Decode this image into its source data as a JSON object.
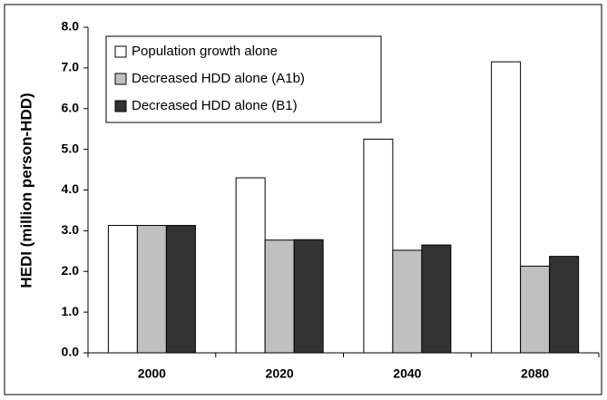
{
  "chart_data": {
    "type": "bar",
    "y_label": "HEDI (million person-HDD)",
    "categories": [
      "2000",
      "2020",
      "2040",
      "2080"
    ],
    "series": [
      {
        "name": "Population growth alone",
        "color": "#ffffff",
        "values": [
          3.13,
          4.3,
          5.25,
          7.15
        ]
      },
      {
        "name": "Decreased HDD alone (A1b)",
        "color": "#c0c0c0",
        "values": [
          3.13,
          2.77,
          2.52,
          2.13
        ]
      },
      {
        "name": "Decreased HDD alone (B1)",
        "color": "#333333",
        "values": [
          3.13,
          2.78,
          2.65,
          2.37
        ]
      }
    ],
    "ylim": [
      0,
      8
    ],
    "yticks": [
      {
        "value": 0,
        "label": "0.0"
      },
      {
        "value": 1,
        "label": "1.0"
      },
      {
        "value": 2,
        "label": "2.0"
      },
      {
        "value": 3,
        "label": "3.0"
      },
      {
        "value": 4,
        "label": "4.0"
      },
      {
        "value": 5,
        "label": "5.0"
      },
      {
        "value": 6,
        "label": "6.0"
      },
      {
        "value": 7,
        "label": "7.0"
      },
      {
        "value": 8,
        "label": "8.0"
      }
    ],
    "legend": "upper left",
    "grid": false
  }
}
